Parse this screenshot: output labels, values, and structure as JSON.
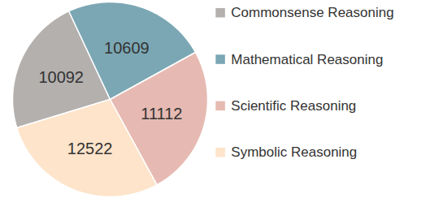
{
  "chart_data": {
    "type": "pie",
    "categories": [
      "Commonsense Reasoning",
      "Mathematical Reasoning",
      "Scientific Reasoning",
      "Symbolic Reasoning"
    ],
    "values": [
      10092,
      10609,
      11112,
      12522
    ],
    "colors": [
      "#b3b0ae",
      "#7ba7b4",
      "#e6bab2",
      "#fde4ca"
    ],
    "data_labels": true,
    "legend": "right"
  }
}
